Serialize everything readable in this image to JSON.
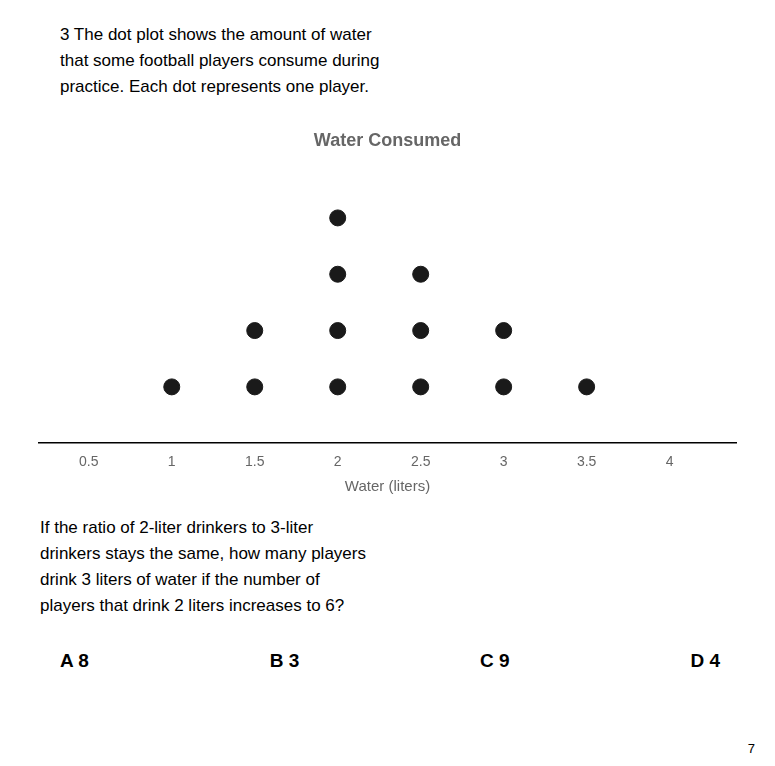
{
  "chart_data": {
    "type": "dot_plot",
    "title": "Water Consumed",
    "xlabel": "Water (liters)",
    "x": [
      1.0,
      1.5,
      2.0,
      2.5,
      3.0,
      3.5
    ],
    "values": [
      1,
      2,
      4,
      3,
      2,
      1
    ],
    "color": "#1a1a1a",
    "xlim": [
      0.2,
      4.4
    ],
    "xticks": [
      0.5,
      1,
      1.5,
      2,
      2.5,
      3,
      3.5,
      4
    ],
    "grid": false,
    "header": [
      "3  The dot plot shows the amount of water",
      "that some football players consume during",
      "practice. Each dot represents one player."
    ],
    "question": [
      "If the ratio of 2-liter drinkers to 3-liter",
      "drinkers stays the same, how many players",
      "drink 3 liters of water if the number of",
      "players that drink 2 liters increases to 6?"
    ],
    "answers": [
      "A 8",
      "B 3",
      "C 9",
      "D 4"
    ],
    "page_number": "7"
  }
}
